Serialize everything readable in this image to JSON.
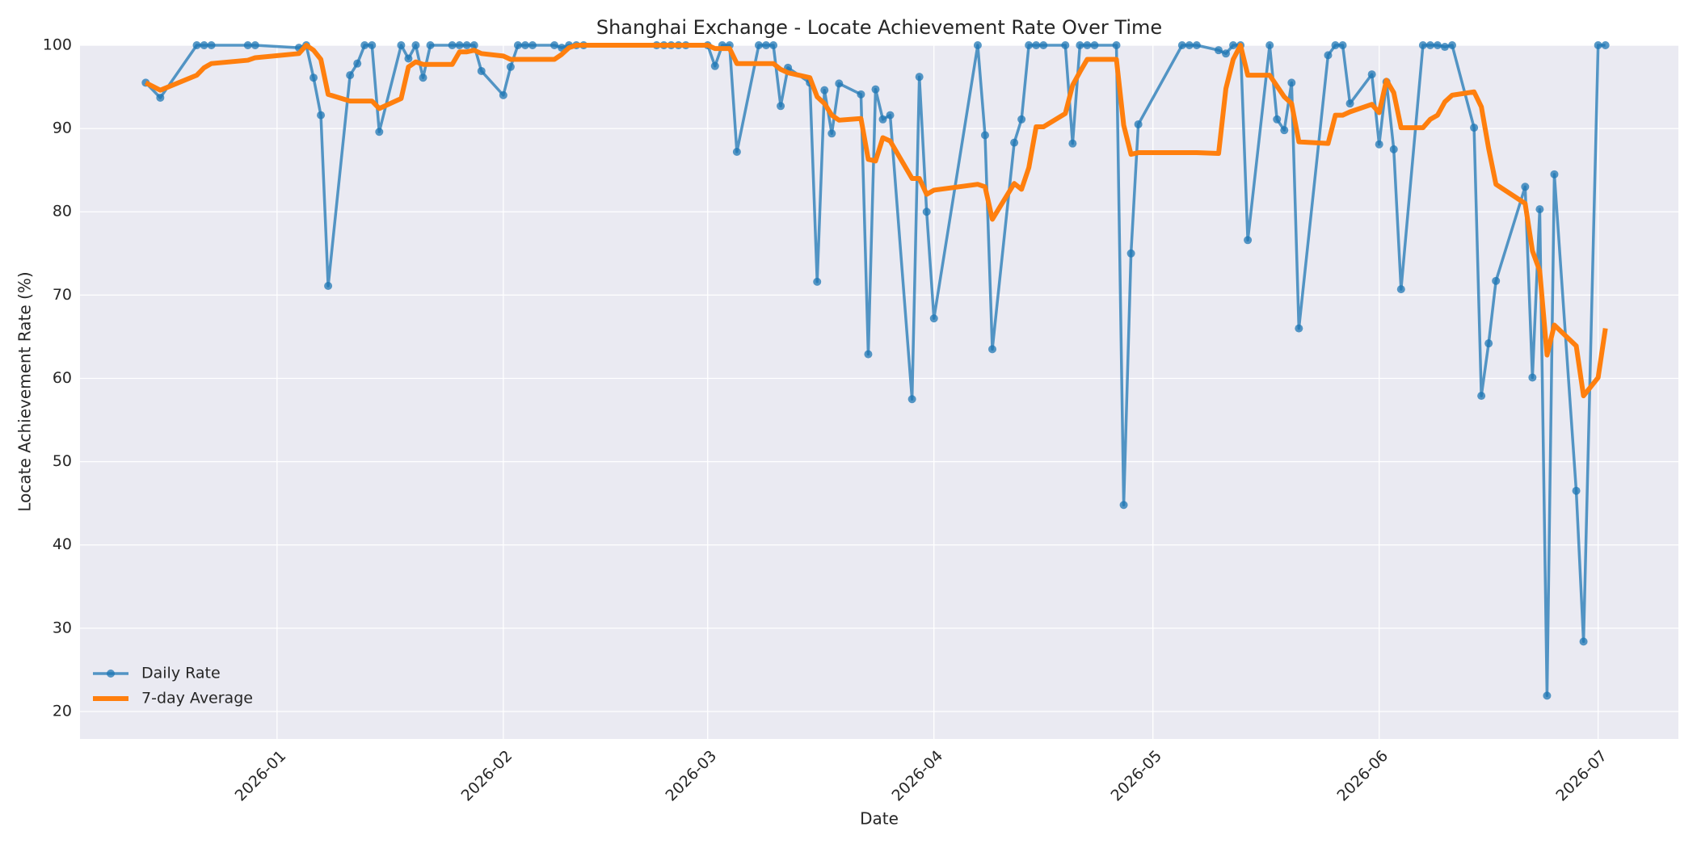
{
  "chart_data": {
    "type": "line",
    "title": "Shanghai Exchange - Locate Achievement Rate Over Time",
    "x_label": "Date",
    "y_label": "Locate Achievement Rate (%)",
    "x": [
      "2025-12-14",
      "2025-12-16",
      "2025-12-21",
      "2025-12-22",
      "2025-12-23",
      "2025-12-28",
      "2025-12-29",
      "2026-01-04",
      "2026-01-05",
      "2026-01-06",
      "2026-01-07",
      "2026-01-08",
      "2026-01-11",
      "2026-01-12",
      "2026-01-13",
      "2026-01-14",
      "2026-01-15",
      "2026-01-18",
      "2026-01-19",
      "2026-01-20",
      "2026-01-21",
      "2026-01-22",
      "2026-01-25",
      "2026-01-26",
      "2026-01-27",
      "2026-01-28",
      "2026-01-29",
      "2026-02-01",
      "2026-02-02",
      "2026-02-03",
      "2026-02-04",
      "2026-02-05",
      "2026-02-08",
      "2026-02-09",
      "2026-02-10",
      "2026-02-11",
      "2026-02-12",
      "2026-02-22",
      "2026-02-23",
      "2026-02-24",
      "2026-02-25",
      "2026-02-26",
      "2026-03-01",
      "2026-03-02",
      "2026-03-03",
      "2026-03-04",
      "2026-03-05",
      "2026-03-08",
      "2026-03-09",
      "2026-03-10",
      "2026-03-11",
      "2026-03-12",
      "2026-03-15",
      "2026-03-16",
      "2026-03-17",
      "2026-03-18",
      "2026-03-19",
      "2026-03-22",
      "2026-03-23",
      "2026-03-24",
      "2026-03-25",
      "2026-03-26",
      "2026-03-29",
      "2026-03-30",
      "2026-03-31",
      "2026-04-01",
      "2026-04-07",
      "2026-04-08",
      "2026-04-09",
      "2026-04-12",
      "2026-04-13",
      "2026-04-14",
      "2026-04-15",
      "2026-04-16",
      "2026-04-19",
      "2026-04-20",
      "2026-04-21",
      "2026-04-22",
      "2026-04-23",
      "2026-04-26",
      "2026-04-27",
      "2026-04-28",
      "2026-04-29",
      "2026-05-05",
      "2026-05-06",
      "2026-05-07",
      "2026-05-10",
      "2026-05-11",
      "2026-05-12",
      "2026-05-13",
      "2026-05-14",
      "2026-05-17",
      "2026-05-18",
      "2026-05-19",
      "2026-05-20",
      "2026-05-21",
      "2026-05-25",
      "2026-05-26",
      "2026-05-27",
      "2026-05-28",
      "2026-05-31",
      "2026-06-01",
      "2026-06-02",
      "2026-06-03",
      "2026-06-04",
      "2026-06-07",
      "2026-06-08",
      "2026-06-09",
      "2026-06-10",
      "2026-06-11",
      "2026-06-14",
      "2026-06-15",
      "2026-06-16",
      "2026-06-17",
      "2026-06-21",
      "2026-06-22",
      "2026-06-23",
      "2026-06-24",
      "2026-06-25",
      "2026-06-28",
      "2026-06-29",
      "2026-07-01",
      "2026-07-02"
    ],
    "series": [
      {
        "name": "Daily Rate",
        "color": "#1f77b4",
        "markers": true,
        "values": [
          95.5,
          93.7,
          100,
          100,
          100,
          100,
          100,
          99.7,
          100,
          96.1,
          91.6,
          71.1,
          96.4,
          97.8,
          100,
          100,
          89.6,
          100,
          98.4,
          100,
          96.1,
          100,
          100,
          100,
          100,
          100,
          96.9,
          94.0,
          97.4,
          100,
          100,
          100,
          100,
          99.7,
          100,
          100,
          100,
          100,
          100,
          100,
          100,
          100,
          100,
          97.5,
          100,
          100,
          87.2,
          100,
          100,
          100,
          92.7,
          97.3,
          95.5,
          71.6,
          94.6,
          89.4,
          95.4,
          94.1,
          62.9,
          94.7,
          91.1,
          91.6,
          57.5,
          96.2,
          80.0,
          67.2,
          100,
          89.2,
          63.5,
          88.3,
          91.1,
          100,
          100,
          100,
          100,
          88.2,
          100,
          100,
          100,
          100,
          44.8,
          75.0,
          90.5,
          100,
          100,
          100,
          99.4,
          99.0,
          100,
          100,
          76.6,
          100,
          91.1,
          89.8,
          95.5,
          66.0,
          98.8,
          100,
          100,
          93.0,
          96.5,
          88.1,
          95.6,
          87.5,
          70.7,
          100,
          100,
          100,
          99.8,
          100,
          90.1,
          57.9,
          64.2,
          71.7,
          83.0,
          60.1,
          80.3,
          21.9,
          84.5,
          46.5,
          28.4,
          100,
          100
        ]
      },
      {
        "name": "7-day Average",
        "color": "#ff7f0e",
        "markers": false,
        "values": [
          95.5,
          94.6,
          96.4,
          97.3,
          97.8,
          98.2,
          98.5,
          99.0,
          100,
          99.4,
          98.3,
          94.1,
          93.3,
          93.3,
          93.3,
          93.3,
          92.4,
          93.6,
          97.4,
          98.0,
          97.7,
          97.7,
          97.7,
          99.2,
          99.2,
          99.4,
          99.0,
          98.7,
          98.3,
          98.3,
          98.3,
          98.3,
          98.3,
          98.9,
          99.7,
          100,
          100,
          100,
          100,
          100,
          100,
          100,
          100,
          99.6,
          99.6,
          99.6,
          97.8,
          97.8,
          97.8,
          97.8,
          97.1,
          96.7,
          96.1,
          93.8,
          93.0,
          91.6,
          91.0,
          91.2,
          86.3,
          86.1,
          88.9,
          88.5,
          84.0,
          84.0,
          82.1,
          82.6,
          83.3,
          83.0,
          79.1,
          83.4,
          82.7,
          85.3,
          90.2,
          90.2,
          91.8,
          95.2,
          96.8,
          98.3,
          98.3,
          98.3,
          90.4,
          86.9,
          87.1,
          87.1,
          87.1,
          87.1,
          87.0,
          94.8,
          98.3,
          100,
          96.4,
          96.4,
          95.1,
          93.8,
          93.0,
          88.4,
          88.2,
          91.6,
          91.6,
          92.0,
          92.9,
          91.9,
          95.8,
          94.3,
          90.1,
          90.1,
          91.1,
          91.6,
          93.2,
          94.0,
          94.4,
          92.6,
          87.6,
          83.3,
          81.0,
          75.3,
          72.9,
          62.8,
          66.4,
          63.9,
          57.9,
          60.1,
          66.0
        ]
      }
    ],
    "xlim": [
      "2025-12-05",
      "2026-07-12"
    ],
    "xticks": [
      {
        "value": "2026-01-01",
        "label": "2026-01"
      },
      {
        "value": "2026-02-01",
        "label": "2026-02"
      },
      {
        "value": "2026-03-01",
        "label": "2026-03"
      },
      {
        "value": "2026-04-01",
        "label": "2026-04"
      },
      {
        "value": "2026-05-01",
        "label": "2026-05"
      },
      {
        "value": "2026-06-01",
        "label": "2026-06"
      },
      {
        "value": "2026-07-01",
        "label": "2026-07"
      }
    ],
    "ylim": [
      16.7,
      100
    ],
    "yticks": [
      20,
      30,
      40,
      50,
      60,
      70,
      80,
      90,
      100
    ],
    "grid": true,
    "legend": "lower left"
  }
}
